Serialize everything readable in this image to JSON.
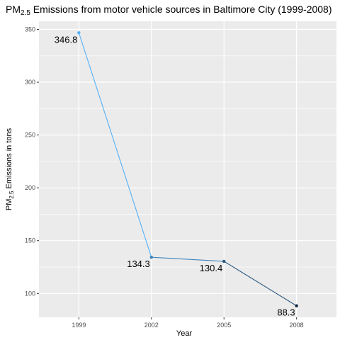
{
  "chart_data": {
    "type": "line",
    "title_main": "PM",
    "title_sub": "2.5",
    "title_rest": "  Emissions from motor vehicle sources in Baltimore City (1999-2008)",
    "xlabel": "Year",
    "ylabel_main": "PM",
    "ylabel_sub": "2.5",
    "ylabel_rest": " Emissions in tons",
    "x": [
      1999,
      2002,
      2005,
      2008
    ],
    "x_tick_labels": [
      "1999",
      "2002",
      "2005",
      "2008"
    ],
    "values": [
      346.8,
      134.3,
      130.4,
      88.3
    ],
    "data_labels": [
      "346.8",
      "134.3",
      "130.4",
      "88.3"
    ],
    "y_ticks": [
      100,
      150,
      200,
      250,
      300,
      350
    ],
    "y_tick_labels": [
      "100",
      "150",
      "200",
      "250",
      "300",
      "350"
    ],
    "ylim": [
      77.4,
      357.7
    ],
    "xlim": [
      1997.35,
      2009.65
    ],
    "grid": true,
    "legend": "none",
    "colors": {
      "panel": "#ebebeb",
      "grid": "#ffffff",
      "line_start": "#56b1f7",
      "line_end": "#132b43"
    }
  }
}
